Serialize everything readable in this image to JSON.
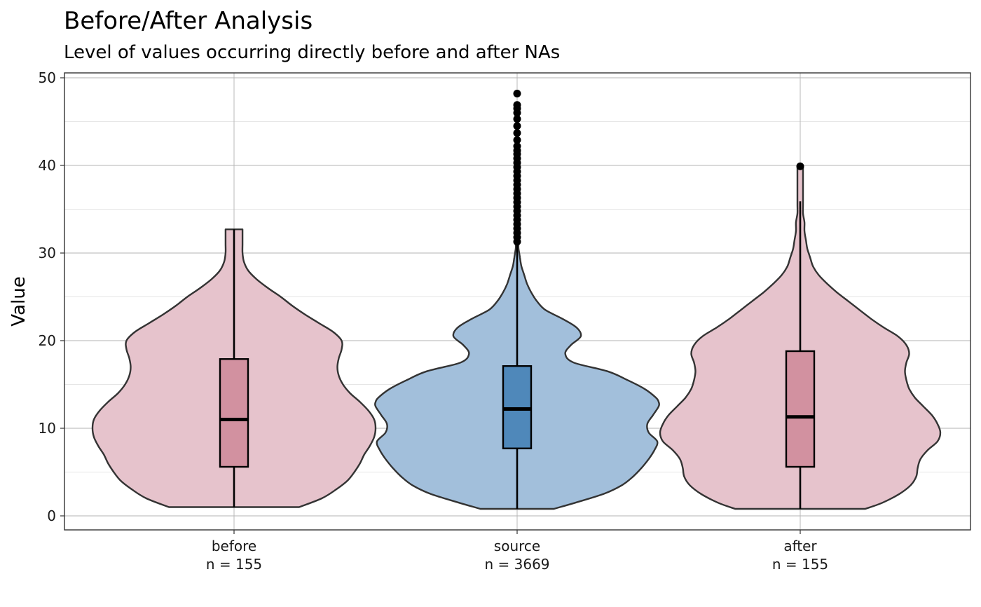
{
  "chart_data": {
    "type": "violin+boxplot",
    "title": "Before/After Analysis",
    "subtitle": "Level of values occurring directly before and after NAs",
    "xlabel": "",
    "ylabel": "Value",
    "ylim": [
      -1.5,
      50.5
    ],
    "y_ticks": [
      0,
      10,
      20,
      30,
      40,
      50
    ],
    "y_tick_labels": [
      "0",
      "10",
      "20",
      "30",
      "40",
      "50"
    ],
    "grid": true,
    "legend": "none",
    "colors": {
      "before_fill": "#e6c3cc",
      "before_box": "#d291a0",
      "source_fill": "#a2bfdb",
      "source_box": "#4f88ba",
      "outline": "#333333",
      "grid_major": "#b3b3b3",
      "grid_minor": "#dedede"
    },
    "groups": [
      {
        "name": "before",
        "count_label": "n = 155",
        "box": {
          "q1": 5.6,
          "median": 11.0,
          "q3": 17.9,
          "whisker_low": 1.0,
          "whisker_high": 32.7
        },
        "outliers": [],
        "violin": {
          "y": [
            1.0,
            2.0,
            3.0,
            4.0,
            5.0,
            6.0,
            7.0,
            8.0,
            9.0,
            10.0,
            11.0,
            12.0,
            13.0,
            14.0,
            15.0,
            16.0,
            17.0,
            18.0,
            19.0,
            20.0,
            21.0,
            22.0,
            23.0,
            24.0,
            25.0,
            26.0,
            27.0,
            28.0,
            29.0,
            30.0,
            31.0,
            32.0,
            32.7
          ],
          "width": [
            0.46,
            0.62,
            0.72,
            0.8,
            0.85,
            0.89,
            0.92,
            0.96,
            0.99,
            1.0,
            0.99,
            0.95,
            0.89,
            0.82,
            0.77,
            0.74,
            0.73,
            0.74,
            0.76,
            0.76,
            0.7,
            0.6,
            0.5,
            0.41,
            0.33,
            0.24,
            0.16,
            0.1,
            0.07,
            0.06,
            0.06,
            0.06,
            0.06
          ]
        }
      },
      {
        "name": "source",
        "count_label": "n = 3669",
        "box": {
          "q1": 7.7,
          "median": 12.2,
          "q3": 17.1,
          "whisker_low": 0.8,
          "whisker_high": 31.0
        },
        "outliers": [
          31.3,
          31.8,
          32.3,
          32.8,
          33.3,
          33.8,
          34.3,
          34.8,
          35.3,
          35.8,
          36.3,
          36.8,
          37.3,
          37.8,
          38.3,
          38.8,
          39.3,
          39.8,
          40.3,
          40.8,
          41.3,
          41.7,
          42.2,
          42.9,
          43.7,
          44.5,
          45.3,
          46.0,
          46.5,
          46.9,
          48.2
        ],
        "violin": {
          "y": [
            0.8,
            1.5,
            2.5,
            3.5,
            4.5,
            5.5,
            6.5,
            7.5,
            8.5,
            9.5,
            10.5,
            11.5,
            12.5,
            13.0,
            13.5,
            14.5,
            15.5,
            16.5,
            17.5,
            18.5,
            19.5,
            20.5,
            21.5,
            22.5,
            23.5,
            24.5,
            25.5,
            26.5,
            27.5,
            28.5,
            29.5,
            30.5,
            31.0
          ],
          "width": [
            0.26,
            0.41,
            0.61,
            0.74,
            0.82,
            0.88,
            0.93,
            0.97,
            0.99,
            0.93,
            0.92,
            0.96,
            1.0,
            1.0,
            0.98,
            0.9,
            0.78,
            0.64,
            0.4,
            0.34,
            0.38,
            0.45,
            0.42,
            0.32,
            0.2,
            0.14,
            0.1,
            0.07,
            0.05,
            0.03,
            0.02,
            0.01,
            0.01
          ]
        }
      },
      {
        "name": "after",
        "count_label": "n = 155",
        "box": {
          "q1": 5.6,
          "median": 11.3,
          "q3": 18.8,
          "whisker_low": 0.8,
          "whisker_high": 35.9
        },
        "outliers": [
          39.9
        ],
        "violin": {
          "y": [
            0.8,
            1.5,
            2.5,
            3.5,
            4.5,
            5.5,
            6.5,
            7.5,
            8.5,
            9.5,
            10.5,
            11.5,
            12.5,
            13.5,
            14.5,
            15.5,
            16.5,
            17.5,
            18.5,
            19.5,
            20.5,
            21.5,
            22.5,
            23.5,
            24.5,
            25.5,
            26.5,
            27.5,
            28.5,
            29.5,
            30.5,
            31.5,
            32.5,
            33.5,
            34.5,
            35.5,
            36.5,
            37.5,
            38.5,
            39.5,
            40.0
          ],
          "width": [
            0.46,
            0.58,
            0.7,
            0.78,
            0.82,
            0.83,
            0.85,
            0.9,
            0.97,
            0.99,
            0.97,
            0.93,
            0.87,
            0.81,
            0.77,
            0.75,
            0.74,
            0.75,
            0.77,
            0.75,
            0.69,
            0.59,
            0.5,
            0.42,
            0.34,
            0.26,
            0.19,
            0.13,
            0.09,
            0.07,
            0.05,
            0.04,
            0.03,
            0.03,
            0.02,
            0.02,
            0.02,
            0.02,
            0.02,
            0.02,
            0.02
          ]
        }
      }
    ]
  }
}
